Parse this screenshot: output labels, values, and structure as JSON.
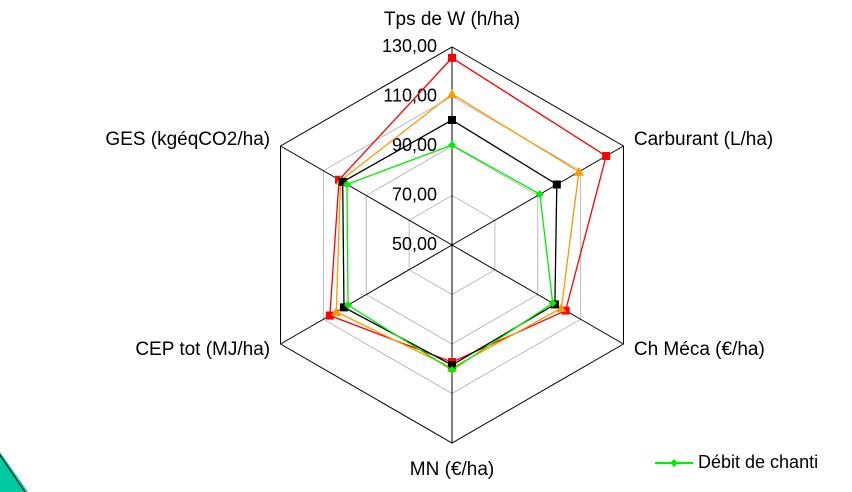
{
  "chart_data": {
    "type": "radar",
    "categories": [
      "Tps de W  (h/ha)",
      "Carburant (L/ha)",
      "Ch Méca (€/ha)",
      "MN (€/ha)",
      "CEP tot (MJ/ha)",
      "GES (kgéqCO2/ha)"
    ],
    "rlim": [
      50,
      130
    ],
    "rticks": [
      {
        "value": 50,
        "label": "50,00"
      },
      {
        "value": 70,
        "label": "70,00"
      },
      {
        "value": 90,
        "label": "90,00"
      },
      {
        "value": 110,
        "label": "110,00"
      },
      {
        "value": 130,
        "label": "130,00"
      }
    ],
    "grid": true,
    "series": [
      {
        "color": "#ff0000",
        "marker": "square",
        "values": [
          125.6,
          121.9,
          103,
          97.3,
          107,
          102.7
        ]
      },
      {
        "color": "#ff9900",
        "marker": "triangle",
        "values": [
          111,
          109.2,
          101,
          99.7,
          104,
          102
        ]
      },
      {
        "color": "#000000",
        "marker": "square",
        "values": [
          100.5,
          98.9,
          98,
          98.5,
          100.4,
          101
        ]
      },
      {
        "name": "Débit de chanti",
        "color": "#00ee00",
        "marker": "diamond",
        "values": [
          90.4,
          91,
          97,
          100.5,
          98.5,
          99
        ]
      }
    ]
  }
}
